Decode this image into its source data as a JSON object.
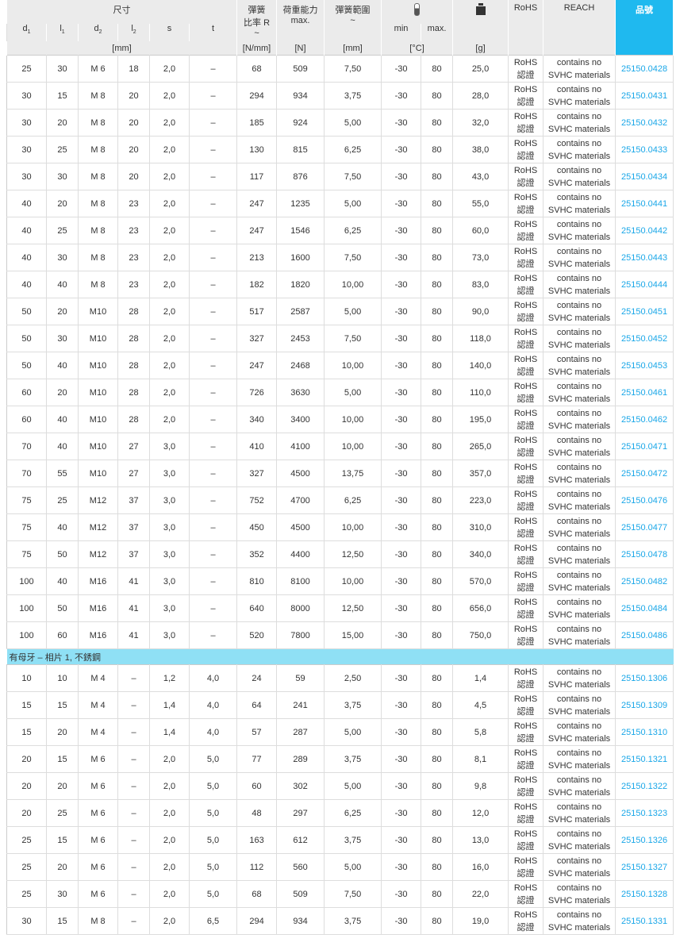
{
  "header": {
    "dimensions": "尺寸",
    "cols": [
      "d",
      "l",
      "d",
      "l",
      "s",
      "t"
    ],
    "col_subs": [
      "1",
      "1",
      "2",
      "2",
      "",
      ""
    ],
    "spring_rate": [
      "彈簧",
      "比率 R",
      "~"
    ],
    "load": [
      "荷重能力",
      "max."
    ],
    "spring_range": [
      "彈簧範圍",
      "~"
    ],
    "temp_min": "min",
    "temp_max": "max.",
    "thermometer_icon": "thermometer-icon",
    "weight_icon": "weight-icon",
    "rohs": "RoHS",
    "reach": "REACH",
    "part_no": "品號",
    "units": {
      "mm": "[mm]",
      "nmm": "[N/mm]",
      "n": "[N]",
      "mm2": "[mm]",
      "c": "[°C]",
      "g": "[g]"
    }
  },
  "colors": {
    "part_header": "#1fb9ef",
    "section": "#8fe0f5",
    "link": "#1aa7e8"
  },
  "rohs_text": [
    "RoHS",
    "認證"
  ],
  "reach_text": [
    "contains no",
    "SVHC materials"
  ],
  "groups": [
    {
      "section": null,
      "rows": [
        [
          "25",
          "30",
          "M 6",
          "18",
          "2,0",
          "–",
          "68",
          "509",
          "7,50",
          "-30",
          "80",
          "25,0",
          "25150.0428"
        ],
        [
          "30",
          "15",
          "M 8",
          "20",
          "2,0",
          "–",
          "294",
          "934",
          "3,75",
          "-30",
          "80",
          "28,0",
          "25150.0431"
        ],
        [
          "30",
          "20",
          "M 8",
          "20",
          "2,0",
          "–",
          "185",
          "924",
          "5,00",
          "-30",
          "80",
          "32,0",
          "25150.0432"
        ],
        [
          "30",
          "25",
          "M 8",
          "20",
          "2,0",
          "–",
          "130",
          "815",
          "6,25",
          "-30",
          "80",
          "38,0",
          "25150.0433"
        ],
        [
          "30",
          "30",
          "M 8",
          "20",
          "2,0",
          "–",
          "117",
          "876",
          "7,50",
          "-30",
          "80",
          "43,0",
          "25150.0434"
        ],
        [
          "40",
          "20",
          "M 8",
          "23",
          "2,0",
          "–",
          "247",
          "1235",
          "5,00",
          "-30",
          "80",
          "55,0",
          "25150.0441"
        ],
        [
          "40",
          "25",
          "M 8",
          "23",
          "2,0",
          "–",
          "247",
          "1546",
          "6,25",
          "-30",
          "80",
          "60,0",
          "25150.0442"
        ],
        [
          "40",
          "30",
          "M 8",
          "23",
          "2,0",
          "–",
          "213",
          "1600",
          "7,50",
          "-30",
          "80",
          "73,0",
          "25150.0443"
        ],
        [
          "40",
          "40",
          "M 8",
          "23",
          "2,0",
          "–",
          "182",
          "1820",
          "10,00",
          "-30",
          "80",
          "83,0",
          "25150.0444"
        ],
        [
          "50",
          "20",
          "M10",
          "28",
          "2,0",
          "–",
          "517",
          "2587",
          "5,00",
          "-30",
          "80",
          "90,0",
          "25150.0451"
        ],
        [
          "50",
          "30",
          "M10",
          "28",
          "2,0",
          "–",
          "327",
          "2453",
          "7,50",
          "-30",
          "80",
          "118,0",
          "25150.0452"
        ],
        [
          "50",
          "40",
          "M10",
          "28",
          "2,0",
          "–",
          "247",
          "2468",
          "10,00",
          "-30",
          "80",
          "140,0",
          "25150.0453"
        ],
        [
          "60",
          "20",
          "M10",
          "28",
          "2,0",
          "–",
          "726",
          "3630",
          "5,00",
          "-30",
          "80",
          "110,0",
          "25150.0461"
        ],
        [
          "60",
          "40",
          "M10",
          "28",
          "2,0",
          "–",
          "340",
          "3400",
          "10,00",
          "-30",
          "80",
          "195,0",
          "25150.0462"
        ],
        [
          "70",
          "40",
          "M10",
          "27",
          "3,0",
          "–",
          "410",
          "4100",
          "10,00",
          "-30",
          "80",
          "265,0",
          "25150.0471"
        ],
        [
          "70",
          "55",
          "M10",
          "27",
          "3,0",
          "–",
          "327",
          "4500",
          "13,75",
          "-30",
          "80",
          "357,0",
          "25150.0472"
        ],
        [
          "75",
          "25",
          "M12",
          "37",
          "3,0",
          "–",
          "752",
          "4700",
          "6,25",
          "-30",
          "80",
          "223,0",
          "25150.0476"
        ],
        [
          "75",
          "40",
          "M12",
          "37",
          "3,0",
          "–",
          "450",
          "4500",
          "10,00",
          "-30",
          "80",
          "310,0",
          "25150.0477"
        ],
        [
          "75",
          "50",
          "M12",
          "37",
          "3,0",
          "–",
          "352",
          "4400",
          "12,50",
          "-30",
          "80",
          "340,0",
          "25150.0478"
        ],
        [
          "100",
          "40",
          "M16",
          "41",
          "3,0",
          "–",
          "810",
          "8100",
          "10,00",
          "-30",
          "80",
          "570,0",
          "25150.0482"
        ],
        [
          "100",
          "50",
          "M16",
          "41",
          "3,0",
          "–",
          "640",
          "8000",
          "12,50",
          "-30",
          "80",
          "656,0",
          "25150.0484"
        ],
        [
          "100",
          "60",
          "M16",
          "41",
          "3,0",
          "–",
          "520",
          "7800",
          "15,00",
          "-30",
          "80",
          "750,0",
          "25150.0486"
        ]
      ]
    },
    {
      "section": "有母牙 – 相片 1, 不銹鋼",
      "rows": [
        [
          "10",
          "10",
          "M 4",
          "–",
          "1,2",
          "4,0",
          "24",
          "59",
          "2,50",
          "-30",
          "80",
          "1,4",
          "25150.1306"
        ],
        [
          "15",
          "15",
          "M 4",
          "–",
          "1,4",
          "4,0",
          "64",
          "241",
          "3,75",
          "-30",
          "80",
          "4,5",
          "25150.1309"
        ],
        [
          "15",
          "20",
          "M 4",
          "–",
          "1,4",
          "4,0",
          "57",
          "287",
          "5,00",
          "-30",
          "80",
          "5,8",
          "25150.1310"
        ],
        [
          "20",
          "15",
          "M 6",
          "–",
          "2,0",
          "5,0",
          "77",
          "289",
          "3,75",
          "-30",
          "80",
          "8,1",
          "25150.1321"
        ],
        [
          "20",
          "20",
          "M 6",
          "–",
          "2,0",
          "5,0",
          "60",
          "302",
          "5,00",
          "-30",
          "80",
          "9,8",
          "25150.1322"
        ],
        [
          "20",
          "25",
          "M 6",
          "–",
          "2,0",
          "5,0",
          "48",
          "297",
          "6,25",
          "-30",
          "80",
          "12,0",
          "25150.1323"
        ],
        [
          "25",
          "15",
          "M 6",
          "–",
          "2,0",
          "5,0",
          "163",
          "612",
          "3,75",
          "-30",
          "80",
          "13,0",
          "25150.1326"
        ],
        [
          "25",
          "20",
          "M 6",
          "–",
          "2,0",
          "5,0",
          "112",
          "560",
          "5,00",
          "-30",
          "80",
          "16,0",
          "25150.1327"
        ],
        [
          "25",
          "30",
          "M 6",
          "–",
          "2,0",
          "5,0",
          "68",
          "509",
          "7,50",
          "-30",
          "80",
          "22,0",
          "25150.1328"
        ],
        [
          "30",
          "15",
          "M 8",
          "–",
          "2,0",
          "6,5",
          "294",
          "934",
          "3,75",
          "-30",
          "80",
          "19,0",
          "25150.1331"
        ]
      ]
    }
  ]
}
